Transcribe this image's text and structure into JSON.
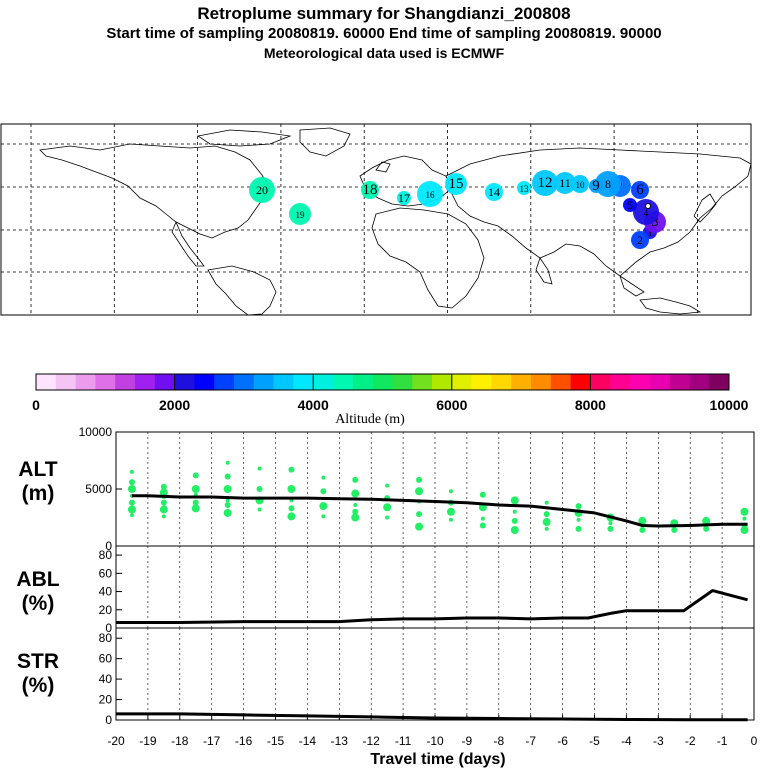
{
  "header": {
    "title": "Retroplume summary for Shangdianzi_200808",
    "subtitle": "Start time of sampling 20080819. 60000     End time of sampling 20080819. 90000",
    "met_note": "Meteorological data used is ECMWF"
  },
  "colors": {
    "alt_scale": [
      "#ffe4ff",
      "#f4c4f4",
      "#ec9cec",
      "#e070e8",
      "#c040e0",
      "#a020f0",
      "#7010f0",
      "#2010e0",
      "#0000ff",
      "#0040ff",
      "#0070ff",
      "#00a0ff",
      "#00c8ff",
      "#00e8ff",
      "#00f0e0",
      "#00f8b0",
      "#00f088",
      "#10e860",
      "#30e040",
      "#70e020",
      "#b0e800",
      "#e0f000",
      "#fff000",
      "#ffd800",
      "#ffb000",
      "#ff8c00",
      "#ff5000",
      "#ff0000",
      "#ff0060",
      "#ff0090",
      "#ff00b0",
      "#e800b0",
      "#c00090",
      "#a00080",
      "#800060"
    ],
    "series_line": "#000000",
    "scatter": "#22ee66"
  },
  "colorbar": {
    "tick_labels": [
      "0",
      "2000",
      "4000",
      "6000",
      "8000",
      "10000"
    ],
    "label": "Altitude (m)"
  },
  "map": {
    "plume_points": [
      {
        "label": "1",
        "alt": 2200
      },
      {
        "label": "2",
        "alt": 2600
      },
      {
        "label": "3",
        "alt": 1800
      },
      {
        "label": "4",
        "alt": 2000
      },
      {
        "label": "5",
        "alt": 2300
      },
      {
        "label": "6",
        "alt": 2700
      },
      {
        "label": "7",
        "alt": 3000
      },
      {
        "label": "8",
        "alt": 3200
      },
      {
        "label": "9",
        "alt": 3400
      },
      {
        "label": "10",
        "alt": 3500
      },
      {
        "label": "11",
        "alt": 3600
      },
      {
        "label": "12",
        "alt": 3700
      },
      {
        "label": "13",
        "alt": 3800
      },
      {
        "label": "14",
        "alt": 3800
      },
      {
        "label": "15",
        "alt": 3900
      },
      {
        "label": "16",
        "alt": 3900
      },
      {
        "label": "17",
        "alt": 4100
      },
      {
        "label": "18",
        "alt": 4300
      },
      {
        "label": "19",
        "alt": 4400
      },
      {
        "label": "20",
        "alt": 4500
      }
    ]
  },
  "chart_data": [
    {
      "type": "line",
      "title": "ALT",
      "ylabel": "ALT (m)",
      "ylabel_line1": "ALT",
      "ylabel_line2": "(m)",
      "ylim": [
        0,
        10000
      ],
      "yticks": [
        "0",
        "5000",
        "10000"
      ],
      "x": [
        -19.5,
        -19,
        -18,
        -17,
        -16,
        -15,
        -14,
        -13,
        -12,
        -11,
        -10,
        -9,
        -8,
        -7,
        -6,
        -5,
        -4,
        -3.5,
        -3,
        -2,
        -1,
        -0.2
      ],
      "values": [
        4400,
        4400,
        4300,
        4300,
        4200,
        4200,
        4200,
        4150,
        4100,
        4000,
        3900,
        3800,
        3600,
        3500,
        3200,
        2900,
        2200,
        1800,
        1750,
        1800,
        1900,
        1900
      ],
      "scatter": [
        {
          "x": -19.5,
          "y": 6500
        },
        {
          "x": -19.5,
          "y": 5600
        },
        {
          "x": -19.5,
          "y": 5000
        },
        {
          "x": -19.5,
          "y": 4400
        },
        {
          "x": -19.5,
          "y": 3800
        },
        {
          "x": -19.5,
          "y": 3200
        },
        {
          "x": -19.5,
          "y": 2700
        },
        {
          "x": -18.5,
          "y": 5200
        },
        {
          "x": -18.5,
          "y": 4700
        },
        {
          "x": -18.5,
          "y": 4300
        },
        {
          "x": -18.5,
          "y": 3800
        },
        {
          "x": -18.5,
          "y": 3200
        },
        {
          "x": -18.5,
          "y": 2600
        },
        {
          "x": -17.5,
          "y": 6200
        },
        {
          "x": -17.5,
          "y": 5000
        },
        {
          "x": -17.5,
          "y": 4500
        },
        {
          "x": -17.5,
          "y": 3800
        },
        {
          "x": -17.5,
          "y": 3300
        },
        {
          "x": -16.5,
          "y": 7300
        },
        {
          "x": -16.5,
          "y": 6100
        },
        {
          "x": -16.5,
          "y": 5000
        },
        {
          "x": -16.5,
          "y": 4000
        },
        {
          "x": -16.5,
          "y": 3600
        },
        {
          "x": -16.5,
          "y": 2900
        },
        {
          "x": -15.5,
          "y": 6800
        },
        {
          "x": -15.5,
          "y": 5000
        },
        {
          "x": -15.5,
          "y": 4000
        },
        {
          "x": -15.5,
          "y": 3200
        },
        {
          "x": -14.5,
          "y": 6700
        },
        {
          "x": -14.5,
          "y": 5000
        },
        {
          "x": -14.5,
          "y": 4000
        },
        {
          "x": -14.5,
          "y": 3300
        },
        {
          "x": -14.5,
          "y": 2600
        },
        {
          "x": -13.5,
          "y": 6000
        },
        {
          "x": -13.5,
          "y": 4800
        },
        {
          "x": -13.5,
          "y": 3500
        },
        {
          "x": -13.5,
          "y": 2600
        },
        {
          "x": -12.5,
          "y": 5800
        },
        {
          "x": -12.5,
          "y": 4600
        },
        {
          "x": -12.5,
          "y": 3600
        },
        {
          "x": -12.5,
          "y": 3000
        },
        {
          "x": -12.5,
          "y": 2500
        },
        {
          "x": -11.5,
          "y": 5300
        },
        {
          "x": -11.5,
          "y": 4200
        },
        {
          "x": -11.5,
          "y": 3400
        },
        {
          "x": -11.5,
          "y": 2500
        },
        {
          "x": -10.5,
          "y": 5800
        },
        {
          "x": -10.5,
          "y": 4800
        },
        {
          "x": -10.5,
          "y": 3900
        },
        {
          "x": -10.5,
          "y": 2800
        },
        {
          "x": -10.5,
          "y": 1700
        },
        {
          "x": -9.5,
          "y": 4800
        },
        {
          "x": -9.5,
          "y": 3800
        },
        {
          "x": -9.5,
          "y": 3000
        },
        {
          "x": -9.5,
          "y": 2300
        },
        {
          "x": -8.5,
          "y": 4500
        },
        {
          "x": -8.5,
          "y": 3400
        },
        {
          "x": -8.5,
          "y": 2400
        },
        {
          "x": -8.5,
          "y": 1800
        },
        {
          "x": -7.5,
          "y": 4000
        },
        {
          "x": -7.5,
          "y": 3000
        },
        {
          "x": -7.5,
          "y": 2200
        },
        {
          "x": -7.5,
          "y": 1400
        },
        {
          "x": -6.5,
          "y": 3800
        },
        {
          "x": -6.5,
          "y": 2800
        },
        {
          "x": -6.5,
          "y": 2100
        },
        {
          "x": -6.5,
          "y": 1500
        },
        {
          "x": -5.5,
          "y": 3500
        },
        {
          "x": -5.5,
          "y": 2900
        },
        {
          "x": -5.5,
          "y": 2300
        },
        {
          "x": -5.5,
          "y": 1500
        },
        {
          "x": -4.5,
          "y": 2500
        },
        {
          "x": -4.5,
          "y": 2000
        },
        {
          "x": -4.5,
          "y": 1500
        },
        {
          "x": -3.5,
          "y": 2200
        },
        {
          "x": -3.5,
          "y": 1800
        },
        {
          "x": -3.5,
          "y": 1400
        },
        {
          "x": -2.5,
          "y": 2000
        },
        {
          "x": -2.5,
          "y": 1700
        },
        {
          "x": -2.5,
          "y": 1400
        },
        {
          "x": -1.5,
          "y": 2200
        },
        {
          "x": -1.5,
          "y": 1800
        },
        {
          "x": -1.5,
          "y": 1500
        },
        {
          "x": -0.3,
          "y": 3000
        },
        {
          "x": -0.3,
          "y": 2400
        },
        {
          "x": -0.3,
          "y": 1800
        },
        {
          "x": -0.3,
          "y": 1400
        }
      ]
    },
    {
      "type": "line",
      "title": "ABL",
      "ylabel": "ABL (%)",
      "ylabel_line1": "ABL",
      "ylabel_line2": "(%)",
      "ylim": [
        0,
        90
      ],
      "yticks": [
        "0",
        "20",
        "40",
        "60",
        "80"
      ],
      "x": [
        -20,
        -18,
        -16,
        -14,
        -13,
        -12,
        -11,
        -10,
        -9,
        -8,
        -7,
        -6,
        -5.2,
        -4.5,
        -4,
        -3,
        -2.2,
        -1.3,
        -0.2
      ],
      "values": [
        6,
        6,
        7,
        7,
        7,
        9,
        10,
        10,
        11,
        11,
        10,
        11,
        11,
        16,
        19,
        19,
        19,
        41,
        31
      ]
    },
    {
      "type": "line",
      "title": "STR",
      "ylabel": "STR (%)",
      "ylabel_line1": "STR",
      "ylabel_line2": "(%)",
      "xlabel": "Travel time (days)",
      "ylim": [
        0,
        90
      ],
      "yticks": [
        "0",
        "20",
        "40",
        "60",
        "80"
      ],
      "xlim": [
        -20,
        0
      ],
      "xticks": [
        "-20",
        "-19",
        "-18",
        "-17",
        "-16",
        "-15",
        "-14",
        "-13",
        "-12",
        "-11",
        "-10",
        "-9",
        "-8",
        "-7",
        "-6",
        "-5",
        "-4",
        "-3",
        "-2",
        "-1",
        "0"
      ],
      "x": [
        -20,
        -18,
        -16,
        -14,
        -12,
        -10,
        -8,
        -6,
        -4,
        -2,
        -0.2
      ],
      "values": [
        6,
        6,
        5,
        4,
        3,
        2,
        1.5,
        1,
        0.5,
        0.3,
        0.2
      ]
    }
  ]
}
